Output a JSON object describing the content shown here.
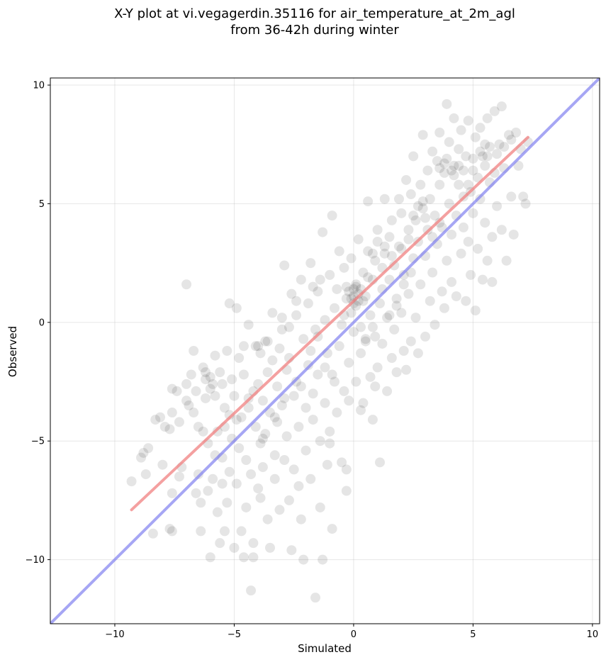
{
  "chart_data": {
    "type": "scatter",
    "title_lines": [
      "X-Y plot at vi.vegagerdin.35116 for air_temperature_at_2m_agl",
      "from 36-42h during winter"
    ],
    "xlabel": "Simulated",
    "ylabel": "Observed",
    "xlim": [
      -12.7,
      10.3
    ],
    "ylim": [
      -12.7,
      10.3
    ],
    "xticks": [
      -10,
      -5,
      0,
      5,
      10
    ],
    "yticks": [
      -10,
      -5,
      0,
      5,
      10
    ],
    "xtick_labels": [
      "−10",
      "−5",
      "0",
      "5",
      "10"
    ],
    "ytick_labels": [
      "−10",
      "−5",
      "0",
      "5",
      "10"
    ],
    "grid": true,
    "point_color": "#000000",
    "point_alpha": 0.1,
    "points": [
      [
        -9.3,
        -6.7
      ],
      [
        -8.9,
        -5.7
      ],
      [
        -8.7,
        -6.4
      ],
      [
        -8.6,
        -5.3
      ],
      [
        -8.4,
        -8.9
      ],
      [
        -8.3,
        -4.1
      ],
      [
        -8.1,
        -4.0
      ],
      [
        -7.9,
        -4.4
      ],
      [
        -7.7,
        -4.5
      ],
      [
        -7.6,
        -2.8
      ],
      [
        -7.6,
        -3.8
      ],
      [
        -7.6,
        -7.2
      ],
      [
        -7.7,
        -8.7
      ],
      [
        -7.6,
        -8.8
      ],
      [
        -7.4,
        -2.9
      ],
      [
        -7.3,
        -4.2
      ],
      [
        -7.0,
        1.6
      ],
      [
        -7.2,
        -6.1
      ],
      [
        -7.0,
        -2.6
      ],
      [
        -6.9,
        -3.5
      ],
      [
        -6.8,
        -2.2
      ],
      [
        -6.7,
        -1.2
      ],
      [
        -6.6,
        -2.9
      ],
      [
        -6.5,
        -6.4
      ],
      [
        -6.5,
        -4.4
      ],
      [
        -6.4,
        -8.8
      ],
      [
        -6.4,
        -7.6
      ],
      [
        -6.3,
        -1.9
      ],
      [
        -6.2,
        -2.4
      ],
      [
        -6.2,
        -3.2
      ],
      [
        -6.1,
        -5.1
      ],
      [
        -6.1,
        -7.1
      ],
      [
        -6.0,
        -2.8
      ],
      [
        -6.0,
        -9.9
      ],
      [
        -5.9,
        -6.6
      ],
      [
        -5.8,
        -3.1
      ],
      [
        -5.8,
        -1.4
      ],
      [
        -5.7,
        -4.6
      ],
      [
        -5.7,
        -8.0
      ],
      [
        -5.6,
        -2.1
      ],
      [
        -5.6,
        -9.3
      ],
      [
        -5.5,
        -5.7
      ],
      [
        -5.5,
        -2.6
      ],
      [
        -5.4,
        -3.6
      ],
      [
        -5.4,
        -8.8
      ],
      [
        -5.3,
        -1.2
      ],
      [
        -5.3,
        -7.6
      ],
      [
        -5.2,
        0.8
      ],
      [
        -5.2,
        -6.3
      ],
      [
        -5.1,
        -2.4
      ],
      [
        -5.1,
        -4.9
      ],
      [
        -5.0,
        -9.5
      ],
      [
        -5.0,
        -3.1
      ],
      [
        -4.9,
        0.6
      ],
      [
        -4.9,
        -6.8
      ],
      [
        -4.8,
        -1.5
      ],
      [
        -4.8,
        -5.3
      ],
      [
        -4.7,
        -8.8
      ],
      [
        -4.7,
        -4.0
      ],
      [
        -4.6,
        -1.0
      ],
      [
        -4.6,
        -2.2
      ],
      [
        -4.5,
        -7.8
      ],
      [
        -4.5,
        -5.8
      ],
      [
        -4.4,
        -3.6
      ],
      [
        -4.4,
        -0.1
      ],
      [
        -4.3,
        -11.3
      ],
      [
        -4.3,
        -6.4
      ],
      [
        -4.2,
        -9.9
      ],
      [
        -4.2,
        -9.3
      ],
      [
        -4.1,
        -1.0
      ],
      [
        -4.1,
        -4.4
      ],
      [
        -4.0,
        -2.6
      ],
      [
        -4.0,
        -7.0
      ],
      [
        -3.9,
        -5.1
      ],
      [
        -3.9,
        -1.3
      ],
      [
        -3.8,
        -3.3
      ],
      [
        -3.8,
        -6.1
      ],
      [
        -3.7,
        -0.8
      ],
      [
        -3.7,
        -4.7
      ],
      [
        -3.6,
        -2.1
      ],
      [
        -3.6,
        -8.3
      ],
      [
        -3.5,
        -9.5
      ],
      [
        -3.5,
        -3.8
      ],
      [
        -3.4,
        0.4
      ],
      [
        -3.4,
        -1.6
      ],
      [
        -3.3,
        -5.6
      ],
      [
        -3.3,
        -6.6
      ],
      [
        -3.2,
        -2.7
      ],
      [
        -3.2,
        -4.2
      ],
      [
        -3.1,
        -1.1
      ],
      [
        -3.1,
        -7.9
      ],
      [
        -3.0,
        -0.3
      ],
      [
        -3.0,
        -3.5
      ],
      [
        -2.9,
        2.4
      ],
      [
        -2.9,
        -5.8
      ],
      [
        -2.8,
        -2.0
      ],
      [
        -2.8,
        -4.8
      ],
      [
        -2.7,
        -1.5
      ],
      [
        -2.7,
        -7.5
      ],
      [
        -2.6,
        -9.6
      ],
      [
        -2.6,
        1.2
      ],
      [
        -2.5,
        -3.1
      ],
      [
        -2.5,
        -6.2
      ],
      [
        -2.4,
        0.3
      ],
      [
        -2.4,
        -2.5
      ],
      [
        -2.3,
        -4.4
      ],
      [
        -2.2,
        1.8
      ],
      [
        -2.2,
        -8.3
      ],
      [
        -2.1,
        -10.0
      ],
      [
        -2.1,
        -0.7
      ],
      [
        -2.0,
        -3.6
      ],
      [
        -2.0,
        -5.4
      ],
      [
        -1.9,
        0.8
      ],
      [
        -1.9,
        -1.8
      ],
      [
        -1.8,
        -6.6
      ],
      [
        -1.8,
        2.5
      ],
      [
        -1.7,
        -3.0
      ],
      [
        -1.7,
        -4.1
      ],
      [
        -1.6,
        -11.6
      ],
      [
        -1.6,
        -0.3
      ],
      [
        -1.5,
        1.3
      ],
      [
        -1.5,
        -2.2
      ],
      [
        -1.4,
        -5.0
      ],
      [
        -1.4,
        -7.8
      ],
      [
        -1.3,
        -10.0
      ],
      [
        -1.3,
        3.8
      ],
      [
        -1.2,
        0.1
      ],
      [
        -1.2,
        -3.4
      ],
      [
        -1.1,
        -1.3
      ],
      [
        -1.1,
        -6.0
      ],
      [
        -1.0,
        2.0
      ],
      [
        -1.0,
        -4.6
      ],
      [
        -0.9,
        -8.7
      ],
      [
        -0.9,
        4.5
      ],
      [
        -0.8,
        0.6
      ],
      [
        -0.8,
        -2.5
      ],
      [
        -0.7,
        -3.8
      ],
      [
        -0.7,
        1.4
      ],
      [
        -0.6,
        -1.0
      ],
      [
        -0.6,
        3.0
      ],
      [
        -0.5,
        -5.9
      ],
      [
        -0.5,
        -0.1
      ],
      [
        -0.4,
        2.3
      ],
      [
        -0.4,
        -2.9
      ],
      [
        -0.3,
        -7.1
      ],
      [
        -0.3,
        -6.2
      ],
      [
        -0.3,
        1.0
      ],
      [
        -0.2,
        -3.3
      ],
      [
        -0.2,
        -1.7
      ],
      [
        -0.1,
        0.4
      ],
      [
        -0.1,
        2.7
      ],
      [
        0.0,
        1.4
      ],
      [
        0.0,
        -0.4
      ],
      [
        0.1,
        1.6
      ],
      [
        0.1,
        -2.5
      ],
      [
        0.2,
        0.9
      ],
      [
        0.2,
        3.5
      ],
      [
        0.3,
        -0.2
      ],
      [
        0.3,
        -1.3
      ],
      [
        0.4,
        2.1
      ],
      [
        0.4,
        -3.4
      ],
      [
        0.5,
        1.1
      ],
      [
        0.5,
        -0.8
      ],
      [
        0.6,
        3.0
      ],
      [
        0.6,
        5.1
      ],
      [
        0.7,
        0.3
      ],
      [
        0.7,
        -2.3
      ],
      [
        0.8,
        1.8
      ],
      [
        0.8,
        -4.1
      ],
      [
        0.9,
        -0.6
      ],
      [
        0.9,
        2.6
      ],
      [
        1.0,
        -1.9
      ],
      [
        1.0,
        3.9
      ],
      [
        1.1,
        0.8
      ],
      [
        1.1,
        -5.9
      ],
      [
        1.2,
        1.4
      ],
      [
        1.2,
        -0.9
      ],
      [
        1.3,
        5.2
      ],
      [
        1.3,
        2.9
      ],
      [
        1.4,
        -2.9
      ],
      [
        1.4,
        0.2
      ],
      [
        1.5,
        3.6
      ],
      [
        1.5,
        1.8
      ],
      [
        1.6,
        -1.5
      ],
      [
        1.6,
        4.3
      ],
      [
        1.7,
        -0.3
      ],
      [
        1.7,
        2.4
      ],
      [
        1.8,
        1.0
      ],
      [
        1.8,
        -2.1
      ],
      [
        1.9,
        3.2
      ],
      [
        1.9,
        5.2
      ],
      [
        2.0,
        0.4
      ],
      [
        2.0,
        4.6
      ],
      [
        2.1,
        -1.2
      ],
      [
        2.1,
        2.0
      ],
      [
        2.2,
        6.0
      ],
      [
        2.2,
        -2.0
      ],
      [
        2.3,
        3.9
      ],
      [
        2.3,
        1.2
      ],
      [
        2.4,
        5.4
      ],
      [
        2.4,
        -0.8
      ],
      [
        2.5,
        2.7
      ],
      [
        2.5,
        7.0
      ],
      [
        2.6,
        4.3
      ],
      [
        2.6,
        0.2
      ],
      [
        2.7,
        -1.3
      ],
      [
        2.7,
        3.4
      ],
      [
        2.8,
        5.8
      ],
      [
        2.8,
        1.6
      ],
      [
        2.9,
        7.9
      ],
      [
        2.9,
        4.8
      ],
      [
        3.0,
        -0.6
      ],
      [
        3.0,
        2.8
      ],
      [
        3.1,
        6.4
      ],
      [
        3.1,
        3.9
      ],
      [
        3.2,
        0.9
      ],
      [
        3.2,
        5.2
      ],
      [
        3.3,
        7.2
      ],
      [
        3.3,
        2.1
      ],
      [
        3.4,
        4.5
      ],
      [
        3.4,
        -0.1
      ],
      [
        3.5,
        6.8
      ],
      [
        3.5,
        3.3
      ],
      [
        3.6,
        8.0
      ],
      [
        3.6,
        5.8
      ],
      [
        3.7,
        1.3
      ],
      [
        3.7,
        4.0
      ],
      [
        3.8,
        6.3
      ],
      [
        3.8,
        0.6
      ],
      [
        3.9,
        9.2
      ],
      [
        3.9,
        2.6
      ],
      [
        4.0,
        5.0
      ],
      [
        4.0,
        7.6
      ],
      [
        4.1,
        3.7
      ],
      [
        4.1,
        1.7
      ],
      [
        4.2,
        6.6
      ],
      [
        4.2,
        8.6
      ],
      [
        4.3,
        4.5
      ],
      [
        4.3,
        1.1
      ],
      [
        4.4,
        7.3
      ],
      [
        4.4,
        5.8
      ],
      [
        4.5,
        2.9
      ],
      [
        4.5,
        8.1
      ],
      [
        4.6,
        4.0
      ],
      [
        4.6,
        6.4
      ],
      [
        4.7,
        0.9
      ],
      [
        4.7,
        7.0
      ],
      [
        4.8,
        3.4
      ],
      [
        4.8,
        8.5
      ],
      [
        4.9,
        5.5
      ],
      [
        4.9,
        2.0
      ],
      [
        5.0,
        6.9
      ],
      [
        5.0,
        4.6
      ],
      [
        5.1,
        7.8
      ],
      [
        5.1,
        0.5
      ],
      [
        5.2,
        6.1
      ],
      [
        5.2,
        3.1
      ],
      [
        5.3,
        8.2
      ],
      [
        5.3,
        5.2
      ],
      [
        5.4,
        1.8
      ],
      [
        5.4,
        7.0
      ],
      [
        5.5,
        4.2
      ],
      [
        5.5,
        6.6
      ],
      [
        5.6,
        8.6
      ],
      [
        5.6,
        2.6
      ],
      [
        5.7,
        5.9
      ],
      [
        5.7,
        7.4
      ],
      [
        5.8,
        3.6
      ],
      [
        5.8,
        1.7
      ],
      [
        5.9,
        8.9
      ],
      [
        5.9,
        6.3
      ],
      [
        6.0,
        4.9
      ],
      [
        6.1,
        7.5
      ],
      [
        6.2,
        9.1
      ],
      [
        6.2,
        3.9
      ],
      [
        6.3,
        6.5
      ],
      [
        6.4,
        2.6
      ],
      [
        6.5,
        7.9
      ],
      [
        6.6,
        5.3
      ],
      [
        6.7,
        3.7
      ],
      [
        6.8,
        8.0
      ],
      [
        6.9,
        6.6
      ],
      [
        7.0,
        7.3
      ],
      [
        7.1,
        5.3
      ],
      [
        7.2,
        5.0
      ],
      [
        7.3,
        7.6
      ],
      [
        -0.2,
        1.3
      ],
      [
        0.0,
        1.1
      ],
      [
        0.1,
        1.5
      ],
      [
        -0.1,
        1.0
      ],
      [
        0.2,
        1.2
      ],
      [
        0.3,
        1.4
      ],
      [
        0.0,
        0.8
      ],
      [
        -0.3,
        1.5
      ],
      [
        0.4,
        0.9
      ],
      [
        0.1,
        0.7
      ],
      [
        3.8,
        6.7
      ],
      [
        4.1,
        6.4
      ],
      [
        3.9,
        6.9
      ],
      [
        4.2,
        6.2
      ],
      [
        3.6,
        6.5
      ],
      [
        4.4,
        6.6
      ],
      [
        5.5,
        7.5
      ],
      [
        5.3,
        7.2
      ],
      [
        5.6,
        7.0
      ],
      [
        2.7,
        4.9
      ],
      [
        3.0,
        4.4
      ],
      [
        2.5,
        4.5
      ],
      [
        2.9,
        5.1
      ],
      [
        -6.0,
        -2.3
      ],
      [
        -5.9,
        -2.6
      ],
      [
        -6.2,
        -2.1
      ],
      [
        -4.0,
        -1.0
      ],
      [
        -3.6,
        -0.8
      ],
      [
        1.0,
        3.4
      ],
      [
        1.3,
        3.2
      ],
      [
        0.8,
        2.9
      ],
      [
        -1.4,
        1.8
      ],
      [
        -1.7,
        1.5
      ],
      [
        -2.4,
        0.9
      ],
      [
        -2.7,
        -0.2
      ],
      [
        -3.0,
        0.2
      ],
      [
        -4.2,
        -2.9
      ],
      [
        -4.4,
        -3.2
      ],
      [
        -4.9,
        -4.1
      ],
      [
        -5.2,
        -3.9
      ],
      [
        -5.4,
        -4.4
      ],
      [
        -1.2,
        -1.9
      ],
      [
        -0.9,
        -2.2
      ],
      [
        0.5,
        -0.7
      ],
      [
        0.8,
        -0.2
      ],
      [
        1.5,
        0.3
      ],
      [
        1.8,
        0.7
      ],
      [
        2.1,
        1.6
      ],
      [
        2.4,
        2.1
      ],
      [
        3.3,
        3.6
      ],
      [
        3.6,
        4.2
      ],
      [
        4.6,
        5.3
      ],
      [
        4.8,
        5.8
      ],
      [
        5.0,
        6.4
      ],
      [
        6.0,
        7.1
      ],
      [
        6.3,
        7.4
      ],
      [
        6.6,
        7.7
      ],
      [
        -7.0,
        -3.3
      ],
      [
        -6.7,
        -3.8
      ],
      [
        -6.3,
        -4.6
      ],
      [
        -5.8,
        -5.6
      ],
      [
        -5.5,
        -6.8
      ],
      [
        -3.8,
        -4.9
      ],
      [
        -3.3,
        -4.0
      ],
      [
        -2.9,
        -3.2
      ],
      [
        -2.2,
        -2.7
      ],
      [
        -1.8,
        -1.2
      ],
      [
        -1.5,
        -0.6
      ],
      [
        -0.4,
        0.3
      ],
      [
        0.6,
        1.9
      ],
      [
        1.2,
        2.3
      ],
      [
        1.6,
        2.8
      ],
      [
        2.0,
        3.1
      ],
      [
        2.3,
        3.5
      ],
      [
        -8.8,
        -5.5
      ],
      [
        -8.0,
        -6.0
      ],
      [
        -7.3,
        -6.5
      ],
      [
        -6.6,
        -7.2
      ],
      [
        -4.6,
        -9.9
      ],
      [
        -3.9,
        -7.4
      ],
      [
        -2.3,
        -6.9
      ],
      [
        -1.0,
        -5.1
      ],
      [
        0.3,
        -3.7
      ],
      [
        0.9,
        -2.7
      ]
    ],
    "fit_line": {
      "color": "#f08080",
      "x": [
        -9.3,
        7.3
      ],
      "y": [
        -7.9,
        7.8
      ]
    },
    "identity_line": {
      "color": "#8080f0",
      "x": [
        -12.7,
        10.3
      ],
      "y": [
        -12.7,
        10.3
      ]
    }
  }
}
